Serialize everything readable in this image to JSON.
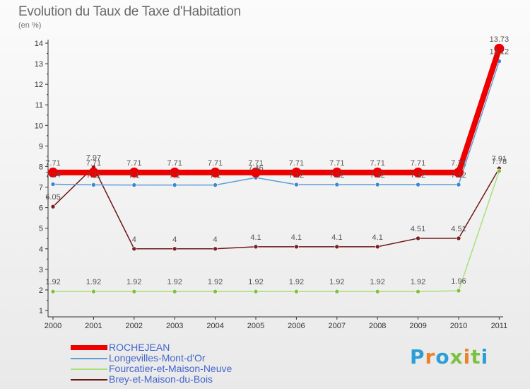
{
  "title": "Evolution du Taux de Taxe d'Habitation",
  "subtitle": "(en %)",
  "brand": {
    "text": "Proxiti",
    "letter_colors": [
      "#2a9fd6",
      "#e9822b",
      "#2a9fd6",
      "#7cc242",
      "#e9822b",
      "#7cc242",
      "#2a9fd6"
    ]
  },
  "chart_data": {
    "type": "line",
    "categories": [
      "2000",
      "2001",
      "2002",
      "2003",
      "2004",
      "2005",
      "2006",
      "2007",
      "2008",
      "2009",
      "2010",
      "2011"
    ],
    "ylim": [
      1,
      14
    ],
    "yticks": [
      "1",
      "2",
      "3",
      "4",
      "5",
      "6",
      "7",
      "8",
      "9",
      "10",
      "11",
      "12",
      "13",
      "14"
    ],
    "grid": false,
    "legend_position": "bottom-left",
    "series": [
      {
        "name": "Brey-et-Maison-du-Bois",
        "color": "#6b1a1a",
        "marker_color": "#7a1f1f",
        "values": [
          6.05,
          7.97,
          4,
          4,
          4,
          4.1,
          4.1,
          4.1,
          4.1,
          4.51,
          4.51,
          7.91
        ],
        "labels": [
          "6.05",
          "7.97",
          "4",
          "4",
          "4",
          "4.1",
          "4.1",
          "4.1",
          "4.1",
          "4.51",
          "4.51",
          "7.91"
        ]
      },
      {
        "name": "Fourcatier-et-Maison-Neuve",
        "color": "#a8e07a",
        "marker_color": "#7cc242",
        "values": [
          1.92,
          1.92,
          1.92,
          1.92,
          1.92,
          1.92,
          1.92,
          1.92,
          1.92,
          1.92,
          1.96,
          7.78
        ],
        "labels": [
          "1.92",
          "1.92",
          "1.92",
          "1.92",
          "1.92",
          "1.92",
          "1.92",
          "1.92",
          "1.92",
          "1.92",
          "1.96",
          "7.78"
        ]
      },
      {
        "name": "Longevilles-Mont-d'Or",
        "color": "#5d9ed8",
        "marker_color": "#3d86cc",
        "values": [
          7.14,
          7.11,
          7.1,
          7.1,
          7.1,
          7.46,
          7.12,
          7.12,
          7.12,
          7.12,
          7.12,
          13.12
        ],
        "labels": [
          "7.14",
          "7.11",
          "7.1",
          "7.1",
          "7.1",
          "7.46",
          "7.12",
          "7.12",
          "7.12",
          "7.12",
          "7.12",
          "13.12"
        ]
      },
      {
        "name": "ROCHEJEAN",
        "color": "#ee0000",
        "marker_color": "#ee0000",
        "values": [
          7.71,
          7.71,
          7.71,
          7.71,
          7.71,
          7.71,
          7.71,
          7.71,
          7.71,
          7.71,
          7.71,
          13.73
        ],
        "labels": [
          "7.71",
          "7.71",
          "7.71",
          "7.71",
          "7.71",
          "7.71",
          "7.71",
          "7.71",
          "7.71",
          "7.71",
          "7.71",
          "13.73"
        ]
      }
    ],
    "legend": [
      "ROCHEJEAN",
      "Longevilles-Mont-d'Or",
      "Fourcatier-et-Maison-Neuve",
      "Brey-et-Maison-du-Bois"
    ]
  }
}
